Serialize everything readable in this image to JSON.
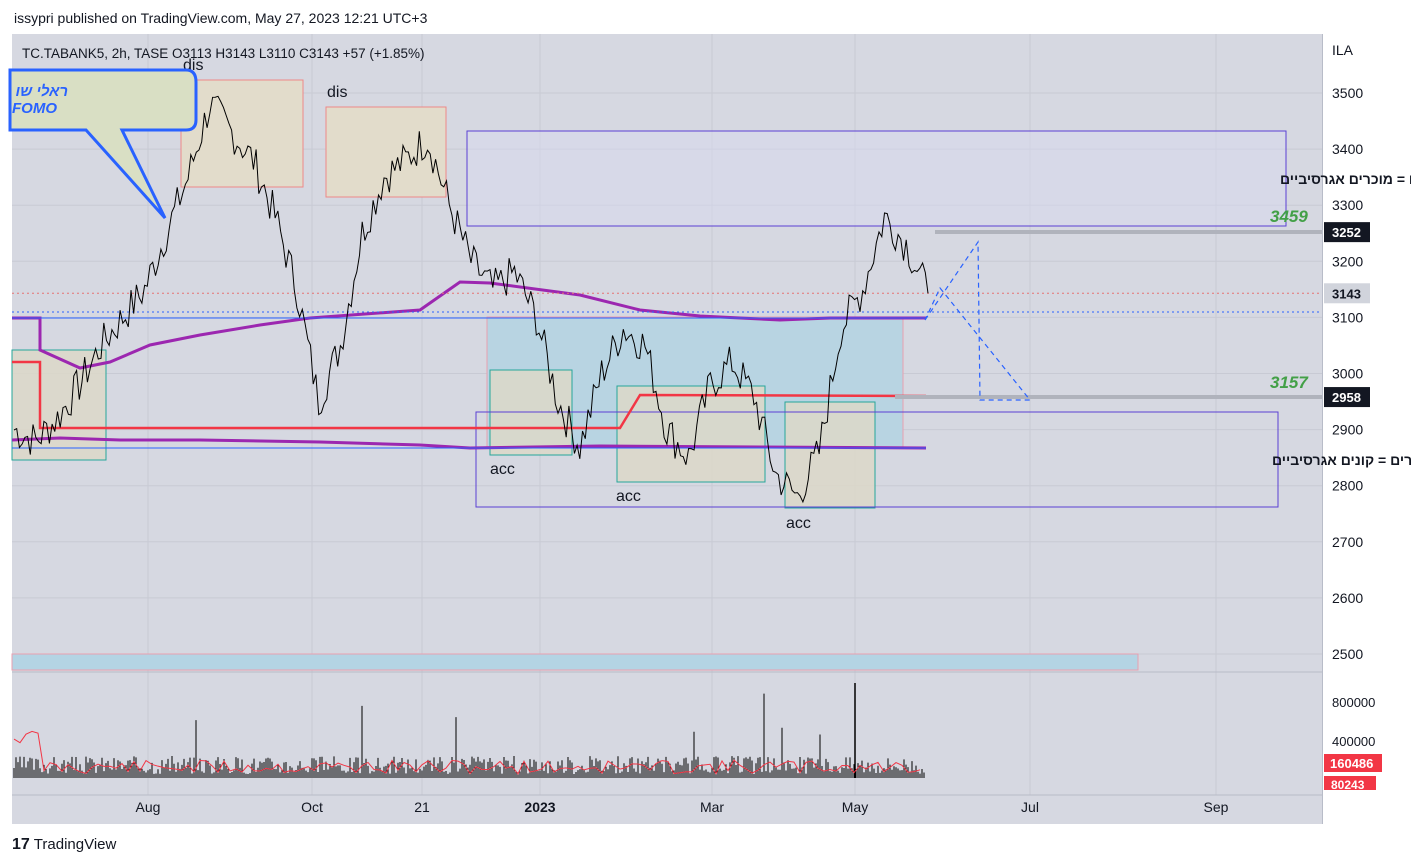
{
  "header": {
    "publisher_line": "issypri published on TradingView.com, May 27, 2023 12:21 UTC+3"
  },
  "symbol": {
    "label": "TC.TABANK5, 2h, TASE  O3113  H3143  L3110  C3143  +57 (+1.85%)"
  },
  "currency": "ILA",
  "footer": {
    "brand": "TradingView"
  },
  "colors": {
    "background": "#d6d8e1",
    "purple": "#9c27b0",
    "red": "#f23645",
    "blue": "#2962ff",
    "green": "#43a047",
    "zone_fill": "#b4d4e4"
  },
  "annotations": {
    "dis1": "dis",
    "dis2": "dis",
    "acc1": "acc",
    "acc2": "acc",
    "acc3": "acc",
    "top_box": "חוסר עניין לקונים = מוכרים אגרסיביים",
    "bottom_box": "חוסר עניין למוכרים = קונים אגרסיביים",
    "level_high": "3459",
    "level_low": "3157",
    "callout_line1": "ראלי שו",
    "callout_line2": "FOMO"
  },
  "chart_data": {
    "type": "line",
    "title": "TC.TABANK5, 2h, TASE",
    "ohlc": {
      "open": 3113,
      "high": 3143,
      "low": 3110,
      "close": 3143,
      "change": "+57 (+1.85%)"
    },
    "x_ticks": [
      "Aug",
      "Oct",
      "21",
      "2023",
      "Mar",
      "May",
      "Jul",
      "Sep"
    ],
    "y_ticks": [
      3500,
      3400,
      3300,
      3200,
      3100,
      3000,
      2900,
      2800,
      2700,
      2600,
      2500
    ],
    "ylim": [
      2470,
      3580
    ],
    "price_labels": [
      {
        "value": 3252,
        "text": "3252",
        "style": "dark"
      },
      {
        "value": 3143,
        "text": "3143",
        "style": "light"
      },
      {
        "value": 2958,
        "text": "2958",
        "style": "dark"
      }
    ],
    "series": [
      {
        "values": [
          2900,
          2880,
          2920,
          2980,
          3050,
          3100,
          3150,
          3250,
          3350,
          3480,
          3430,
          3380,
          3280,
          3150,
          2950,
          3050,
          3250,
          3350,
          3380,
          3420,
          3300,
          3200,
          3150,
          3180,
          3100,
          2950,
          2870,
          3000,
          3080,
          3050,
          2900,
          2850,
          2980,
          3020,
          2960,
          2820,
          2780,
          2860,
          3080,
          3150,
          3280,
          3230,
          3143
        ]
      }
    ],
    "volume": {
      "ticks": [
        800000,
        400000
      ],
      "labels": [
        "160486",
        "80243"
      ]
    }
  }
}
